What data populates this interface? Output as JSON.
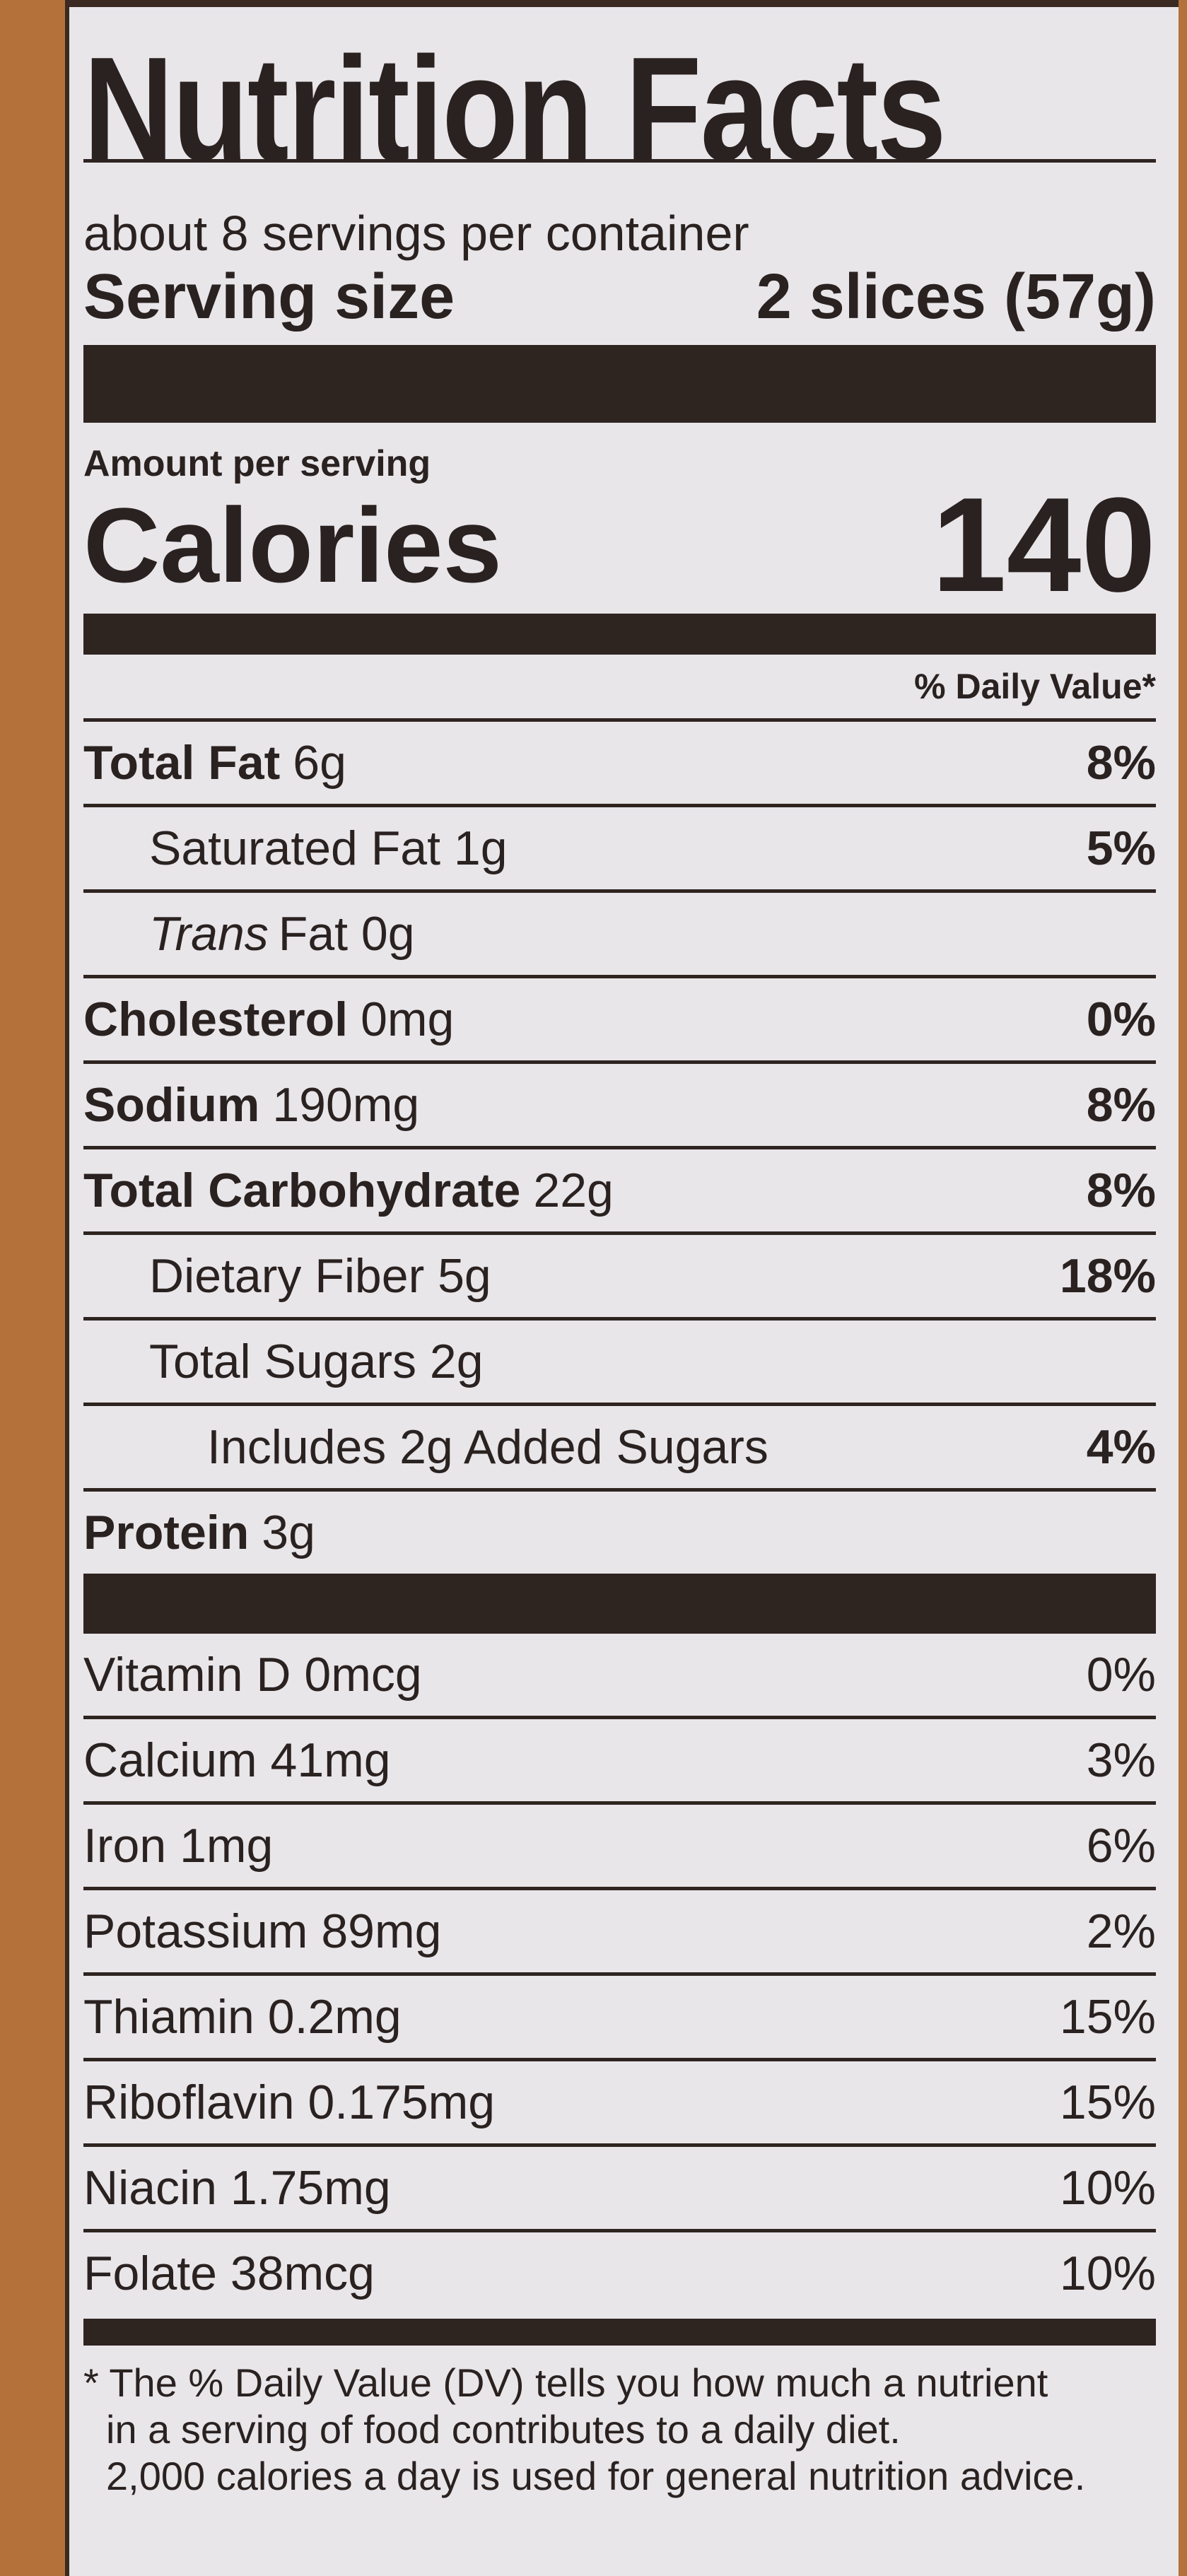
{
  "label": {
    "title": "Nutrition Facts",
    "servings_per_container": "about 8 servings per container",
    "serving_size_label": "Serving size",
    "serving_size_value": "2 slices (57g)",
    "amount_per_serving": "Amount per serving",
    "calories_label": "Calories",
    "calories_value": "140",
    "daily_value_header": "% Daily Value*",
    "nutrients": [
      {
        "name": "Total Fat",
        "amount": "6g",
        "dv": "8%"
      },
      {
        "name": "Saturated Fat 1g",
        "amount": "",
        "dv": "5%"
      },
      {
        "name": "Trans",
        "amount": "Fat 0g",
        "dv": ""
      },
      {
        "name": "Cholesterol",
        "amount": "0mg",
        "dv": "0%"
      },
      {
        "name": "Sodium",
        "amount": "190mg",
        "dv": "8%"
      },
      {
        "name": "Total Carbohydrate",
        "amount": "22g",
        "dv": "8%"
      },
      {
        "name": "Dietary Fiber 5g",
        "amount": "",
        "dv": "18%"
      },
      {
        "name": "Total Sugars 2g",
        "amount": "",
        "dv": ""
      },
      {
        "name": "Includes 2g Added Sugars",
        "amount": "",
        "dv": "4%"
      },
      {
        "name": "Protein",
        "amount": "3g",
        "dv": ""
      }
    ],
    "vitamins": [
      {
        "name": "Vitamin D 0mcg",
        "dv": "0%"
      },
      {
        "name": "Calcium 41mg",
        "dv": "3%"
      },
      {
        "name": "Iron 1mg",
        "dv": "6%"
      },
      {
        "name": "Potassium 89mg",
        "dv": "2%"
      },
      {
        "name": "Thiamin 0.2mg",
        "dv": "15%"
      },
      {
        "name": "Riboflavin 0.175mg",
        "dv": "15%"
      },
      {
        "name": "Niacin 1.75mg",
        "dv": "10%"
      },
      {
        "name": "Folate 38mcg",
        "dv": "10%"
      }
    ],
    "footnote": [
      "* The % Daily Value (DV) tells you how much a nutrient",
      "in a serving of food contributes to a daily diet.",
      "2,000 calories a day is used for general nutrition advice."
    ]
  }
}
